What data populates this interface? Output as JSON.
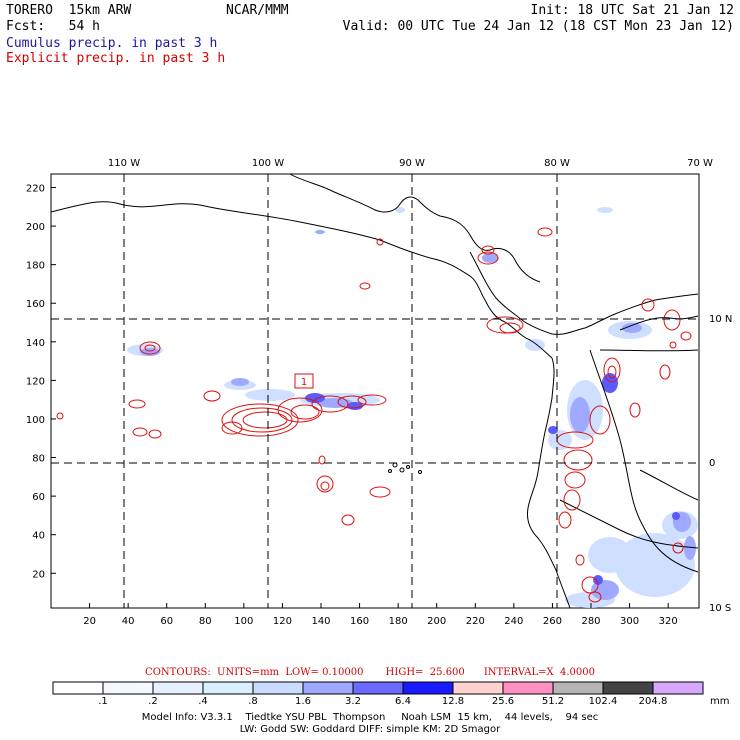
{
  "header": {
    "model": "TORERO  15km ARW",
    "org": "NCAR/MMM",
    "init": "Init: 18 UTC Sat 21 Jan 12",
    "fcst": "Fcst:   54 h",
    "valid": "Valid: 00 UTC Tue 24 Jan 12 (18 CST Mon 23 Jan 12)",
    "cumulus_label": "Cumulus precip. in past 3 h",
    "explicit_label": "Explicit precip. in past 3 h"
  },
  "colors": {
    "cumulus_text": "#1a1a9e",
    "explicit_text": "#d40000",
    "contour": "#dd1111",
    "grid_dash": "#000000"
  },
  "map": {
    "top_lon_labels": [
      "110 W",
      "100 W",
      "90 W",
      "80 W",
      "70 W"
    ],
    "right_lat_labels": [
      "10 N",
      "0",
      "10 S"
    ],
    "x_ticks": [
      "20",
      "40",
      "60",
      "80",
      "100",
      "120",
      "140",
      "160",
      "180",
      "200",
      "220",
      "240",
      "260",
      "280",
      "300",
      "320"
    ],
    "y_ticks": [
      "20",
      "40",
      "60",
      "80",
      "100",
      "120",
      "140",
      "160",
      "180",
      "200",
      "220"
    ],
    "high_marker": "1"
  },
  "legend": {
    "contours_text": "CONTOURS:  UNITS=mm  LOW= 0.10000       HIGH=  25.600      INTERVAL=X  4.0000",
    "units": "mm",
    "levels": [
      ".1",
      ".2",
      ".4",
      ".8",
      "1.6",
      "3.2",
      "6.4",
      "12.8",
      "25.6",
      "51.2",
      "102.4",
      "204.8"
    ],
    "bins": [
      "#ffffff",
      "#f4f8ff",
      "#e6f0ff",
      "#d7efff",
      "#c9dcff",
      "#9fa9ff",
      "#6a6aff",
      "#1a1aff",
      "#ffd2d2",
      "#ff90c0",
      "#b5b5b5",
      "#444444",
      "#d8a8ff"
    ]
  },
  "footer": {
    "line1": "Model Info: V3.3.1    Tiedtke YSU PBL  Thompson     Noah LSM  15 km,    44 levels,    94 sec",
    "line2": "LW: Godd SW: Goddard DIFF: simple KM: 2D Smagor"
  }
}
